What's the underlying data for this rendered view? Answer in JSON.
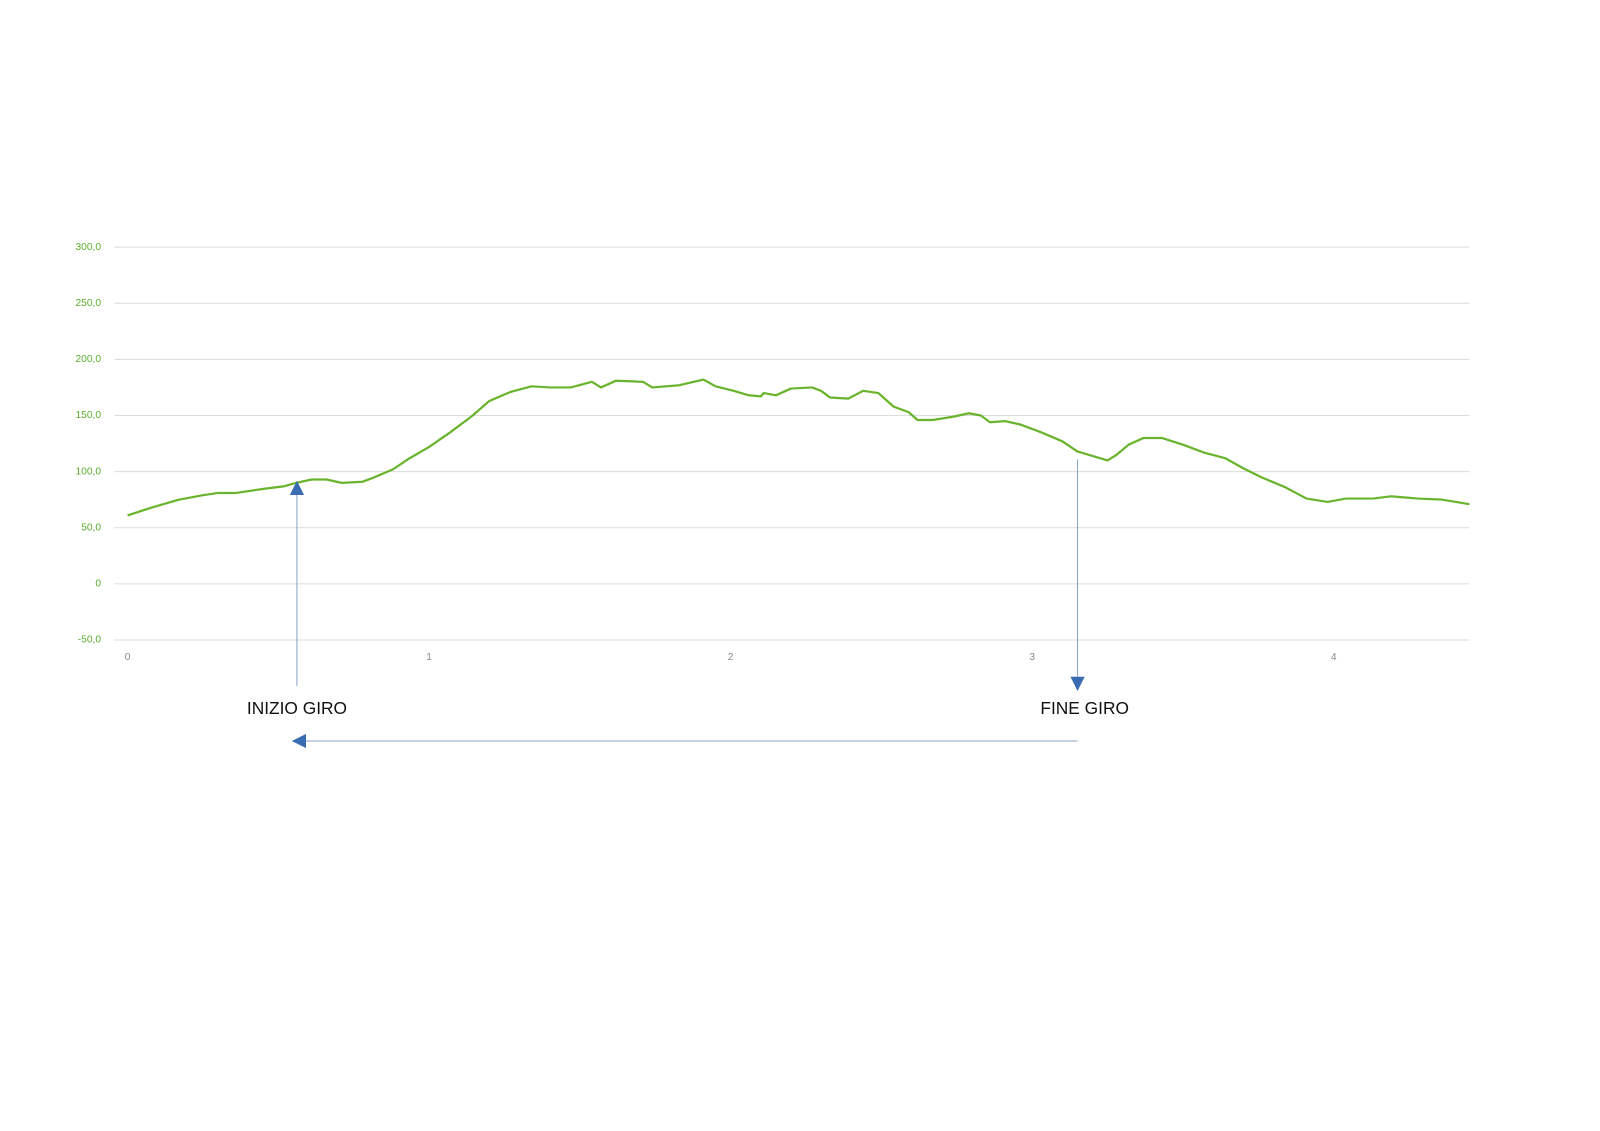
{
  "chart_data": {
    "type": "line",
    "color": "#6ab42d",
    "grid": true,
    "xlim": [
      0,
      4.45
    ],
    "ylim": [
      -50,
      300
    ],
    "xticks": [
      0,
      1,
      2,
      3,
      4
    ],
    "yticks": [
      {
        "value": -50,
        "label": "-50,0"
      },
      0,
      {
        "value": 50,
        "label": "50,0"
      },
      {
        "value": 100,
        "label": "100,0"
      },
      {
        "value": 150,
        "label": "150,0"
      },
      {
        "value": 200,
        "label": "200,0"
      },
      {
        "value": 250,
        "label": "250,0"
      },
      {
        "value": 300,
        "label": "300,0"
      }
    ],
    "x": [
      0,
      0.08,
      0.17,
      0.25,
      0.3,
      0.36,
      0.46,
      0.52,
      0.56,
      0.61,
      0.66,
      0.71,
      0.78,
      0.81,
      0.88,
      0.93,
      1.0,
      1.07,
      1.14,
      1.2,
      1.27,
      1.34,
      1.4,
      1.47,
      1.54,
      1.57,
      1.62,
      1.71,
      1.74,
      1.83,
      1.91,
      1.95,
      2.01,
      2.06,
      2.1,
      2.11,
      2.15,
      2.2,
      2.27,
      2.3,
      2.33,
      2.39,
      2.44,
      2.49,
      2.54,
      2.59,
      2.62,
      2.67,
      2.74,
      2.79,
      2.83,
      2.86,
      2.91,
      2.96,
      3.03,
      3.1,
      3.15,
      3.2,
      3.25,
      3.28,
      3.32,
      3.37,
      3.43,
      3.5,
      3.57,
      3.64,
      3.7,
      3.76,
      3.84,
      3.91,
      3.98,
      4.04,
      4.13,
      4.19,
      4.28,
      4.36,
      4.45
    ],
    "values": [
      61,
      68,
      75,
      79,
      81,
      81,
      85,
      87,
      90,
      93,
      93,
      90,
      91,
      94,
      102,
      111,
      122,
      135,
      149,
      163,
      171,
      176,
      175,
      175,
      180,
      175,
      181,
      180,
      175,
      177,
      182,
      176,
      172,
      168,
      167,
      170,
      168,
      174,
      175,
      172,
      166,
      165,
      172,
      170,
      158,
      153,
      146,
      146,
      149,
      152,
      150,
      144,
      145,
      142,
      135,
      127,
      118,
      114,
      110,
      115,
      124,
      130,
      130,
      124,
      117,
      112,
      103,
      95,
      86,
      76,
      73,
      76,
      76,
      78,
      76,
      75,
      71
    ],
    "annotations": [
      "INIZIO GIRO",
      "FINE GIRO"
    ]
  }
}
